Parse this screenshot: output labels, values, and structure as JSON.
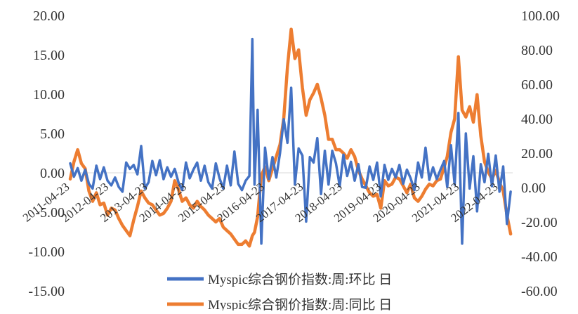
{
  "chart_data": {
    "type": "line",
    "title": "",
    "xlabel": "",
    "ylabel": "",
    "y_left_lim": [
      -15,
      20
    ],
    "y_right_lim": [
      -60,
      100
    ],
    "y_left_ticks": [
      "20.00",
      "15.00",
      "10.00",
      "5.00",
      "0.00",
      "-5.00",
      "-10.00",
      "-15.00"
    ],
    "y_right_ticks": [
      "100.00",
      "80.00",
      "60.00",
      "40.00",
      "20.00",
      "0.00",
      "-20.00",
      "-40.00",
      "-60.00"
    ],
    "x_tick_labels": [
      "2011-04-23",
      "2012-04-23",
      "2013-04-23",
      "2014-04-23",
      "2015-04-23",
      "2016-04-23",
      "2017-04-23",
      "2018-04-23",
      "2019-04-23",
      "2020-04-23",
      "2021-04-23",
      "2022-04-23"
    ],
    "grid": false,
    "legend_position": "bottom",
    "series": [
      {
        "name": "Myspic综合钢价指数:周:环比 日",
        "axis": "left",
        "color": "#4472C4",
        "points": [
          [
            "2011-04-23",
            1.2
          ],
          [
            "2011-05-28",
            -0.5
          ],
          [
            "2011-07-02",
            0.6
          ],
          [
            "2011-08-06",
            -1.0
          ],
          [
            "2011-09-10",
            0.4
          ],
          [
            "2011-10-15",
            -1.4
          ],
          [
            "2011-11-19",
            -2.0
          ],
          [
            "2011-12-24",
            0.9
          ],
          [
            "2012-01-28",
            -0.8
          ],
          [
            "2012-03-03",
            0.7
          ],
          [
            "2012-04-07",
            -1.0
          ],
          [
            "2012-05-12",
            -1.6
          ],
          [
            "2012-06-16",
            -0.6
          ],
          [
            "2012-07-21",
            -1.8
          ],
          [
            "2012-08-25",
            -2.4
          ],
          [
            "2012-09-29",
            1.3
          ],
          [
            "2012-11-03",
            0.5
          ],
          [
            "2012-12-08",
            1.0
          ],
          [
            "2013-01-12",
            -0.2
          ],
          [
            "2013-02-16",
            3.4
          ],
          [
            "2013-03-23",
            -2.0
          ],
          [
            "2013-04-27",
            -1.2
          ],
          [
            "2013-06-01",
            1.5
          ],
          [
            "2013-07-06",
            -0.3
          ],
          [
            "2013-08-10",
            1.6
          ],
          [
            "2013-09-14",
            -0.8
          ],
          [
            "2013-10-19",
            0.7
          ],
          [
            "2013-11-23",
            -0.5
          ],
          [
            "2013-12-28",
            0.5
          ],
          [
            "2014-02-01",
            -1.2
          ],
          [
            "2014-03-08",
            -2.2
          ],
          [
            "2014-04-12",
            1.3
          ],
          [
            "2014-05-17",
            -0.7
          ],
          [
            "2014-06-21",
            0.4
          ],
          [
            "2014-07-26",
            1.3
          ],
          [
            "2014-08-30",
            -1.0
          ],
          [
            "2014-10-04",
            0.9
          ],
          [
            "2014-11-08",
            -1.2
          ],
          [
            "2014-12-13",
            -2.0
          ],
          [
            "2015-01-17",
            1.2
          ],
          [
            "2015-02-21",
            -0.7
          ],
          [
            "2015-03-28",
            -2.0
          ],
          [
            "2015-05-02",
            0.9
          ],
          [
            "2015-06-06",
            -1.6
          ],
          [
            "2015-07-11",
            2.7
          ],
          [
            "2015-08-15",
            -1.4
          ],
          [
            "2015-09-19",
            -2.2
          ],
          [
            "2015-10-24",
            -1.0
          ],
          [
            "2015-11-28",
            -0.4
          ],
          [
            "2015-12-26",
            17.0
          ],
          [
            "2016-01-15",
            -1.5
          ],
          [
            "2016-02-13",
            8.0
          ],
          [
            "2016-03-19",
            -9.0
          ],
          [
            "2016-04-23",
            3.2
          ],
          [
            "2016-05-28",
            -0.8
          ],
          [
            "2016-07-02",
            2.0
          ],
          [
            "2016-08-06",
            -0.6
          ],
          [
            "2016-09-10",
            2.5
          ],
          [
            "2016-10-15",
            6.8
          ],
          [
            "2016-11-19",
            3.8
          ],
          [
            "2016-12-24",
            10.8
          ],
          [
            "2017-01-28",
            -1.5
          ],
          [
            "2017-03-04",
            3.1
          ],
          [
            "2017-04-08",
            2.2
          ],
          [
            "2017-05-13",
            -6.2
          ],
          [
            "2017-06-17",
            2.0
          ],
          [
            "2017-07-22",
            1.3
          ],
          [
            "2017-08-26",
            4.4
          ],
          [
            "2017-09-30",
            -2.7
          ],
          [
            "2017-11-04",
            2.8
          ],
          [
            "2017-12-09",
            -1.5
          ],
          [
            "2018-01-13",
            2.8
          ],
          [
            "2018-02-17",
            1.2
          ],
          [
            "2018-03-24",
            -1.7
          ],
          [
            "2018-04-28",
            2.3
          ],
          [
            "2018-06-02",
            -0.4
          ],
          [
            "2018-07-07",
            1.4
          ],
          [
            "2018-08-11",
            -1.0
          ],
          [
            "2018-09-15",
            1.1
          ],
          [
            "2018-10-20",
            -1.8
          ],
          [
            "2018-11-24",
            -1.9
          ],
          [
            "2018-12-29",
            0.8
          ],
          [
            "2019-02-02",
            -0.9
          ],
          [
            "2019-03-09",
            1.3
          ],
          [
            "2019-04-13",
            -3.0
          ],
          [
            "2019-05-18",
            1.0
          ],
          [
            "2019-06-22",
            -0.9
          ],
          [
            "2019-07-27",
            0.5
          ],
          [
            "2019-08-31",
            -0.6
          ],
          [
            "2019-10-05",
            1.0
          ],
          [
            "2019-11-09",
            -1.4
          ],
          [
            "2019-12-14",
            0.4
          ],
          [
            "2020-01-18",
            -0.7
          ],
          [
            "2020-02-22",
            -2.2
          ],
          [
            "2020-03-28",
            1.3
          ],
          [
            "2020-05-02",
            -0.6
          ],
          [
            "2020-06-06",
            3.2
          ],
          [
            "2020-07-11",
            -0.9
          ],
          [
            "2020-08-15",
            0.7
          ],
          [
            "2020-09-19",
            -0.8
          ],
          [
            "2020-10-24",
            0.4
          ],
          [
            "2020-11-28",
            1.5
          ],
          [
            "2020-12-26",
            -1.8
          ],
          [
            "2021-01-30",
            3.5
          ],
          [
            "2021-03-06",
            -1.5
          ],
          [
            "2021-04-10",
            7.6
          ],
          [
            "2021-05-15",
            -9.0
          ],
          [
            "2021-06-19",
            5.0
          ],
          [
            "2021-07-24",
            -2.0
          ],
          [
            "2021-08-28",
            2.1
          ],
          [
            "2021-10-02",
            -4.9
          ],
          [
            "2021-11-06",
            1.1
          ],
          [
            "2021-12-11",
            -1.2
          ],
          [
            "2022-01-15",
            2.4
          ],
          [
            "2022-02-19",
            -1.7
          ],
          [
            "2022-03-26",
            2.2
          ],
          [
            "2022-04-30",
            -2.4
          ],
          [
            "2022-06-04",
            0.8
          ],
          [
            "2022-07-09",
            -6.5
          ],
          [
            "2022-08-13",
            -2.4
          ]
        ]
      },
      {
        "name": "Myspic综合钢价指数:周:同比 日",
        "axis": "right",
        "color": "#ED7D31",
        "points": [
          [
            "2011-04-23",
            5
          ],
          [
            "2011-05-28",
            15
          ],
          [
            "2011-07-02",
            22
          ],
          [
            "2011-08-06",
            14
          ],
          [
            "2011-09-10",
            11
          ],
          [
            "2011-10-15",
            -2
          ],
          [
            "2011-11-19",
            -8
          ],
          [
            "2011-12-24",
            -3
          ],
          [
            "2012-01-28",
            -10
          ],
          [
            "2012-03-03",
            -9
          ],
          [
            "2012-04-07",
            -16
          ],
          [
            "2012-05-12",
            -12
          ],
          [
            "2012-06-16",
            -13
          ],
          [
            "2012-07-21",
            -18
          ],
          [
            "2012-08-25",
            -22
          ],
          [
            "2012-09-29",
            -25
          ],
          [
            "2012-11-03",
            -28
          ],
          [
            "2012-12-08",
            -19
          ],
          [
            "2013-01-12",
            -11
          ],
          [
            "2013-02-16",
            -2
          ],
          [
            "2013-03-23",
            -6
          ],
          [
            "2013-04-27",
            -9
          ],
          [
            "2013-06-01",
            -10
          ],
          [
            "2013-07-06",
            -13
          ],
          [
            "2013-08-10",
            -16
          ],
          [
            "2013-09-14",
            -15
          ],
          [
            "2013-10-19",
            -12
          ],
          [
            "2013-11-23",
            -8
          ],
          [
            "2013-12-28",
            4
          ],
          [
            "2014-02-01",
            -1
          ],
          [
            "2014-03-08",
            -8
          ],
          [
            "2014-04-12",
            -6
          ],
          [
            "2014-05-17",
            -10
          ],
          [
            "2014-06-21",
            -12
          ],
          [
            "2014-07-26",
            -8
          ],
          [
            "2014-08-30",
            -11
          ],
          [
            "2014-10-04",
            -13
          ],
          [
            "2014-11-08",
            -16
          ],
          [
            "2014-12-13",
            -18
          ],
          [
            "2015-01-17",
            -20
          ],
          [
            "2015-02-21",
            -18
          ],
          [
            "2015-03-28",
            -23
          ],
          [
            "2015-05-02",
            -25
          ],
          [
            "2015-06-06",
            -27
          ],
          [
            "2015-07-11",
            -30
          ],
          [
            "2015-08-15",
            -33
          ],
          [
            "2015-09-19",
            -33
          ],
          [
            "2015-10-24",
            -31
          ],
          [
            "2015-11-28",
            -34
          ],
          [
            "2015-12-26",
            -28
          ],
          [
            "2016-01-15",
            -26
          ],
          [
            "2016-02-13",
            -17
          ],
          [
            "2016-03-19",
            7
          ],
          [
            "2016-04-23",
            12
          ],
          [
            "2016-05-28",
            4
          ],
          [
            "2016-07-02",
            11
          ],
          [
            "2016-08-06",
            18
          ],
          [
            "2016-09-10",
            25
          ],
          [
            "2016-10-15",
            40
          ],
          [
            "2016-11-19",
            70
          ],
          [
            "2016-12-24",
            92
          ],
          [
            "2017-01-28",
            75
          ],
          [
            "2017-03-04",
            80
          ],
          [
            "2017-04-08",
            58
          ],
          [
            "2017-05-13",
            42
          ],
          [
            "2017-06-17",
            51
          ],
          [
            "2017-07-22",
            55
          ],
          [
            "2017-08-26",
            60
          ],
          [
            "2017-09-30",
            52
          ],
          [
            "2017-11-04",
            42
          ],
          [
            "2017-12-09",
            28
          ],
          [
            "2018-01-13",
            28
          ],
          [
            "2018-02-17",
            22
          ],
          [
            "2018-03-24",
            22
          ],
          [
            "2018-04-28",
            20
          ],
          [
            "2018-06-02",
            17
          ],
          [
            "2018-07-07",
            22
          ],
          [
            "2018-08-11",
            18
          ],
          [
            "2018-09-15",
            10
          ],
          [
            "2018-10-20",
            5
          ],
          [
            "2018-11-24",
            1
          ],
          [
            "2018-12-29",
            -3
          ],
          [
            "2019-02-02",
            -5
          ],
          [
            "2019-03-09",
            -4
          ],
          [
            "2019-04-13",
            -12
          ],
          [
            "2019-05-18",
            4
          ],
          [
            "2019-06-22",
            1
          ],
          [
            "2019-07-27",
            2
          ],
          [
            "2019-08-31",
            6
          ],
          [
            "2019-10-05",
            5
          ],
          [
            "2019-11-09",
            1
          ],
          [
            "2019-12-14",
            -3
          ],
          [
            "2020-01-18",
            2
          ],
          [
            "2020-02-22",
            -6
          ],
          [
            "2020-03-28",
            -8
          ],
          [
            "2020-05-02",
            -5
          ],
          [
            "2020-06-06",
            -1
          ],
          [
            "2020-07-11",
            2
          ],
          [
            "2020-08-15",
            1
          ],
          [
            "2020-09-19",
            4
          ],
          [
            "2020-10-24",
            5
          ],
          [
            "2020-11-28",
            12
          ],
          [
            "2020-12-26",
            18
          ],
          [
            "2021-01-30",
            32
          ],
          [
            "2021-03-06",
            40
          ],
          [
            "2021-04-10",
            76
          ],
          [
            "2021-05-15",
            45
          ],
          [
            "2021-06-19",
            41
          ],
          [
            "2021-07-24",
            47
          ],
          [
            "2021-08-28",
            38
          ],
          [
            "2021-10-02",
            54
          ],
          [
            "2021-11-06",
            30
          ],
          [
            "2021-12-11",
            15
          ],
          [
            "2022-01-15",
            9
          ],
          [
            "2022-02-19",
            5
          ],
          [
            "2022-03-26",
            10
          ],
          [
            "2022-04-30",
            3
          ],
          [
            "2022-06-04",
            -2
          ],
          [
            "2022-07-09",
            -16
          ],
          [
            "2022-08-13",
            -27
          ]
        ]
      }
    ]
  }
}
